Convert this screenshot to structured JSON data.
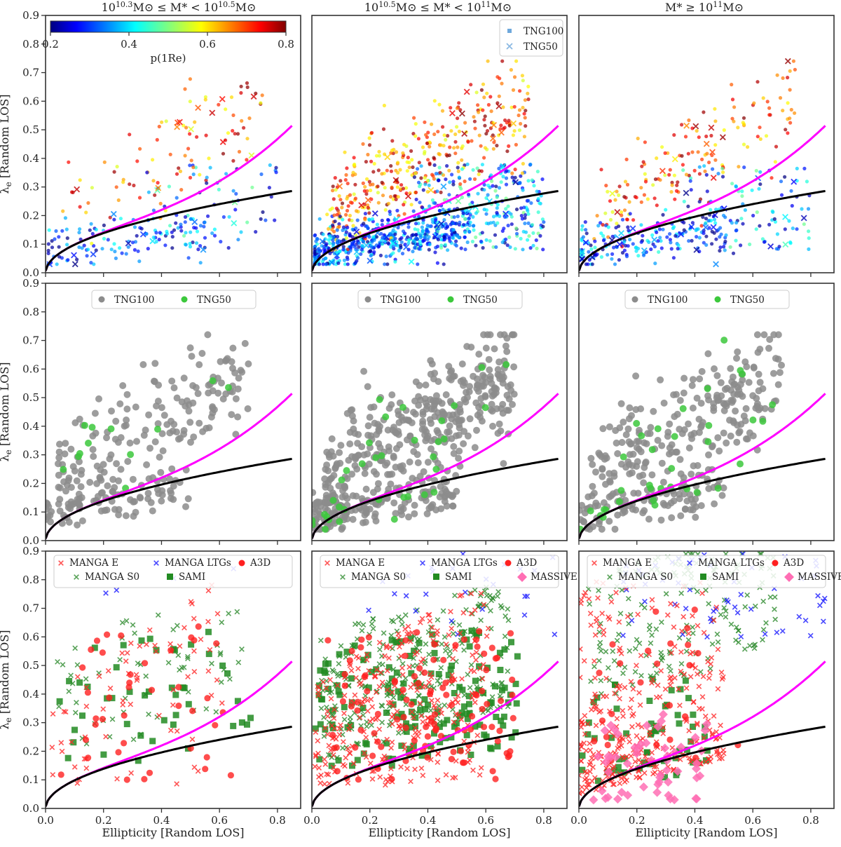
{
  "chart_data": {
    "type": "scatter",
    "layout": "3x3 grid",
    "column_titles": [
      "10^10.3 M⊙ ≤ M* < 10^10.5 M⊙",
      "10^10.5 M⊙ ≤ M* < 10^11 M⊙",
      "M* ≥ 10^11 M⊙"
    ],
    "title_parts": [
      {
        "a": "10",
        "e1": "10.3",
        "b": "M⊙ ≤ M* < 10",
        "e2": "10.5",
        "c": "M⊙"
      },
      {
        "a": "10",
        "e1": "10.5",
        "b": "M⊙ ≤ M* < 10",
        "e2": "11",
        "c": "M⊙"
      },
      {
        "a": "M* ≥ 10",
        "e1": "11",
        "b": "M⊙",
        "e2": "",
        "c": ""
      }
    ],
    "xlabel": "Ellipticity [Random LOS]",
    "ylabel": "λe [Random LOS]",
    "ylabel_main": "λ",
    "ylabel_sub": "e",
    "ylabel_rest": " [Random LOS]",
    "xlim": [
      0,
      0.88
    ],
    "ylim": [
      0,
      0.9
    ],
    "xticks": [
      "0.0",
      "0.2",
      "0.4",
      "0.6",
      "0.8"
    ],
    "yticks": [
      "0.0",
      "0.1",
      "0.2",
      "0.3",
      "0.4",
      "0.5",
      "0.6",
      "0.7",
      "0.8",
      "0.9"
    ],
    "curves": {
      "magenta": {
        "formula": "0.31*sqrt(eps)*(1+1.2*eps^2.5)",
        "xmax": 0.85,
        "color": "#ff00ff"
      },
      "black": {
        "formula": "0.31*sqrt(eps)",
        "xmax": 0.85,
        "color": "#000000"
      }
    },
    "colorbar": {
      "label": "p(1Re)",
      "range": [
        0.2,
        0.8
      ],
      "ticks": [
        "0.2",
        "0.4",
        "0.6",
        "0.8"
      ],
      "colormap": "jet"
    },
    "row_legends": {
      "row1": [
        "TNG100",
        "TNG50"
      ],
      "row2": [
        "TNG100",
        "TNG50"
      ],
      "row3_left": [
        "MANGA E",
        "MANGA S0",
        "MANGA LTGs",
        "SAMI",
        "A3D"
      ],
      "row3": [
        "MANGA E",
        "MANGA S0",
        "MANGA LTGs",
        "SAMI",
        "A3D",
        "MASSIVE"
      ]
    },
    "colors": {
      "tng100_gray": "#8c8c8c",
      "tng50_green": "#3cc83c",
      "manga_e": "#ff2a2a",
      "manga_s0": "#2e8b2e",
      "manga_ltg": "#1a1aff",
      "sami": "#228b22",
      "a3d": "#ff2020",
      "massive": "#ff6eb4"
    },
    "panels": [
      {
        "row": 1,
        "col": 1,
        "kind": "colored",
        "n_tng100": 260,
        "n_tng50": 25,
        "ellipticity_range": [
          0.02,
          0.82
        ],
        "lambda_range": [
          0.05,
          0.72
        ]
      },
      {
        "row": 1,
        "col": 2,
        "kind": "colored",
        "n_tng100": 1100,
        "n_tng50": 45,
        "ellipticity_range": [
          0.0,
          0.8
        ],
        "lambda_range": [
          0.03,
          0.75
        ]
      },
      {
        "row": 1,
        "col": 3,
        "kind": "colored",
        "n_tng100": 420,
        "n_tng50": 40,
        "ellipticity_range": [
          0.0,
          0.86
        ],
        "lambda_range": [
          0.04,
          0.73
        ]
      },
      {
        "row": 2,
        "col": 1,
        "kind": "gray",
        "n_tng100": 250,
        "n_tng50": 12,
        "ellipticity_range": [
          0.02,
          0.72
        ],
        "lambda_range": [
          0.05,
          0.72
        ]
      },
      {
        "row": 2,
        "col": 2,
        "kind": "gray",
        "n_tng100": 520,
        "n_tng50": 35,
        "ellipticity_range": [
          0.0,
          0.75
        ],
        "lambda_range": [
          0.04,
          0.68
        ]
      },
      {
        "row": 2,
        "col": 3,
        "kind": "gray",
        "n_tng100": 330,
        "n_tng50": 35,
        "ellipticity_range": [
          0.0,
          0.7
        ],
        "lambda_range": [
          0.04,
          0.72
        ]
      },
      {
        "row": 3,
        "col": 1,
        "kind": "obs",
        "n_manga_e": 70,
        "n_manga_s0": 60,
        "n_manga_ltg": 4,
        "n_sami": 45,
        "n_a3d": 40,
        "n_massive": 0
      },
      {
        "row": 3,
        "col": 2,
        "kind": "obs",
        "n_manga_e": 280,
        "n_manga_s0": 260,
        "n_manga_ltg": 25,
        "n_sami": 160,
        "n_a3d": 110,
        "n_massive": 0
      },
      {
        "row": 3,
        "col": 3,
        "kind": "obs",
        "n_manga_e": 330,
        "n_manga_s0": 170,
        "n_manga_ltg": 55,
        "n_sami": 60,
        "n_a3d": 25,
        "n_massive": 55
      }
    ]
  }
}
